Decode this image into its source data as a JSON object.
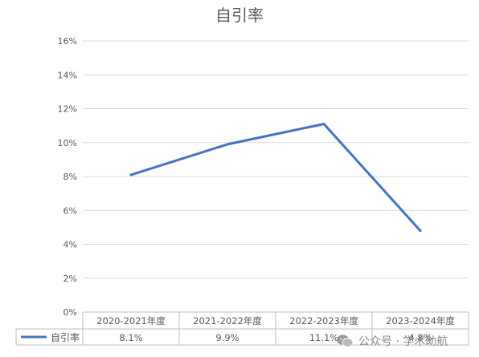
{
  "chart_data": {
    "type": "line",
    "title": "自引率",
    "categories": [
      "2020-2021年度",
      "2021-2022年度",
      "2022-2023年度",
      "2023-2024年度"
    ],
    "series": [
      {
        "name": "自引率",
        "values": [
          8.1,
          9.9,
          11.1,
          4.8
        ],
        "color": "#4472c4"
      }
    ],
    "data_labels": [
      "8.1%",
      "9.9%",
      "11.1%",
      "4.8%"
    ],
    "y_ticks": [
      "0%",
      "2%",
      "4%",
      "6%",
      "8%",
      "10%",
      "12%",
      "14%",
      "16%"
    ],
    "ylim": [
      0,
      16
    ],
    "y_step": 2,
    "y_unit": "%",
    "grid": true,
    "legend": "data-table",
    "gridline_color": "#d9d9d9",
    "text_color": "#595959"
  },
  "watermark": {
    "text": "公众号 · 学术助航",
    "icon": "wechat-icon"
  }
}
